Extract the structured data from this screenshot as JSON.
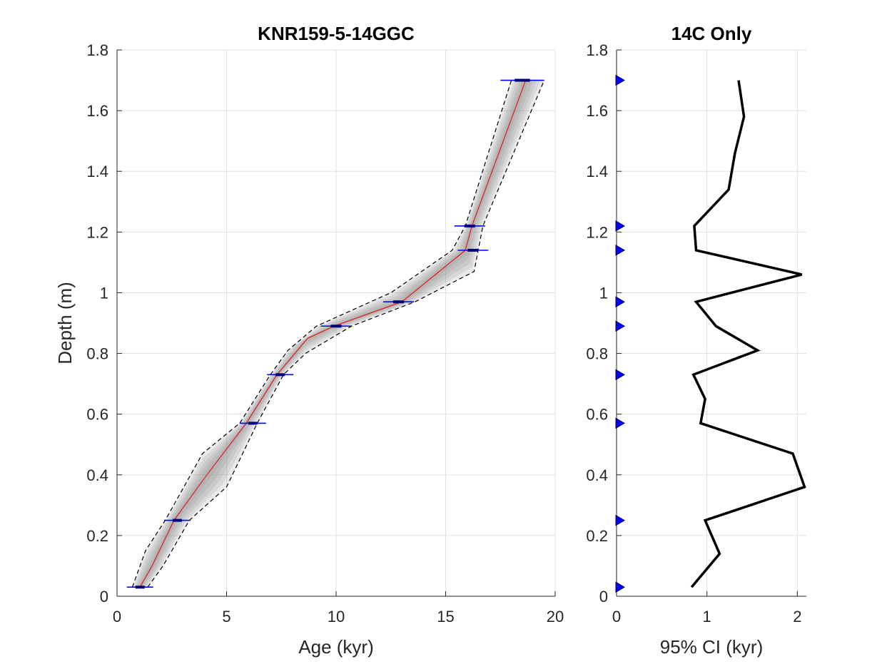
{
  "chart_data": [
    {
      "type": "line",
      "title": "KNR159-5-14GGC",
      "xlabel": "Age (kyr)",
      "ylabel": "Depth (m)",
      "xlim": [
        0,
        20
      ],
      "ylim": [
        0,
        1.8
      ],
      "xticks": [
        "0",
        "5",
        "10",
        "15",
        "20"
      ],
      "yticks": [
        "0",
        "0.2",
        "0.4",
        "0.6",
        "0.8",
        "1",
        "1.2",
        "1.4",
        "1.6",
        "1.8"
      ],
      "grid": true,
      "colors": {
        "median": "#e41a1c",
        "bounds": "#000000",
        "dates": "#0000ff",
        "ensemble": "#8c8c8c"
      },
      "series": [
        {
          "style": "median",
          "x": [
            1.05,
            1.6,
            2.6,
            4.1,
            5.9,
            7.3,
            8.7,
            9.9,
            13.0,
            15.9,
            16.2,
            18.65
          ],
          "y": [
            0.03,
            0.1,
            0.25,
            0.4,
            0.57,
            0.73,
            0.85,
            0.89,
            0.97,
            1.14,
            1.22,
            1.7
          ]
        },
        {
          "style": "bounds-upper",
          "x": [
            0.7,
            1.3,
            2.2,
            3.9,
            5.6,
            7.0,
            7.8,
            9.1,
            12.5,
            15.3,
            15.9,
            18.0
          ],
          "y": [
            0.03,
            0.15,
            0.25,
            0.47,
            0.57,
            0.73,
            0.81,
            0.89,
            1.0,
            1.14,
            1.22,
            1.7
          ]
        },
        {
          "style": "bounds-lower",
          "x": [
            1.4,
            2.1,
            3.3,
            5.0,
            6.4,
            7.6,
            8.6,
            10.7,
            13.6,
            16.3,
            16.7,
            19.5
          ],
          "y": [
            0.03,
            0.1,
            0.25,
            0.36,
            0.57,
            0.73,
            0.8,
            0.89,
            0.97,
            1.07,
            1.22,
            1.7
          ]
        }
      ],
      "dates": [
        {
          "depth": 0.03,
          "age": 1.05,
          "err": 0.6
        },
        {
          "depth": 0.25,
          "age": 2.75,
          "err": 0.6
        },
        {
          "depth": 0.57,
          "age": 6.2,
          "err": 0.6
        },
        {
          "depth": 0.73,
          "age": 7.45,
          "err": 0.6
        },
        {
          "depth": 0.89,
          "age": 10.0,
          "err": 0.7
        },
        {
          "depth": 0.97,
          "age": 12.85,
          "err": 0.7
        },
        {
          "depth": 1.14,
          "age": 16.25,
          "err": 0.7
        },
        {
          "depth": 1.22,
          "age": 16.1,
          "err": 0.7
        },
        {
          "depth": 1.7,
          "age": 18.5,
          "err": 1.0
        }
      ]
    },
    {
      "type": "line",
      "title": "14C Only",
      "xlabel": "95% CI (kyr)",
      "ylabel": "",
      "xlim": [
        0,
        2.1
      ],
      "ylim": [
        0,
        1.8
      ],
      "xticks": [
        "0",
        "1",
        "2"
      ],
      "yticks": [
        "0",
        "0.2",
        "0.4",
        "0.6",
        "0.8",
        "1",
        "1.2",
        "1.4",
        "1.6",
        "1.8"
      ],
      "grid": true,
      "colors": {
        "line": "#000000",
        "markers": "#0000ff"
      },
      "series": [
        {
          "x": [
            0.83,
            1.14,
            0.98,
            2.08,
            1.95,
            0.93,
            0.98,
            0.85,
            1.56,
            1.1,
            0.88,
            2.05,
            0.88,
            0.86,
            1.24,
            1.31,
            1.41,
            1.35
          ],
          "y": [
            0.03,
            0.14,
            0.25,
            0.36,
            0.47,
            0.57,
            0.65,
            0.73,
            0.81,
            0.89,
            0.97,
            1.06,
            1.14,
            1.22,
            1.34,
            1.46,
            1.58,
            1.7
          ]
        }
      ],
      "markers_depth": [
        0.03,
        0.25,
        0.57,
        0.73,
        0.89,
        0.97,
        1.14,
        1.22,
        1.7
      ]
    }
  ]
}
